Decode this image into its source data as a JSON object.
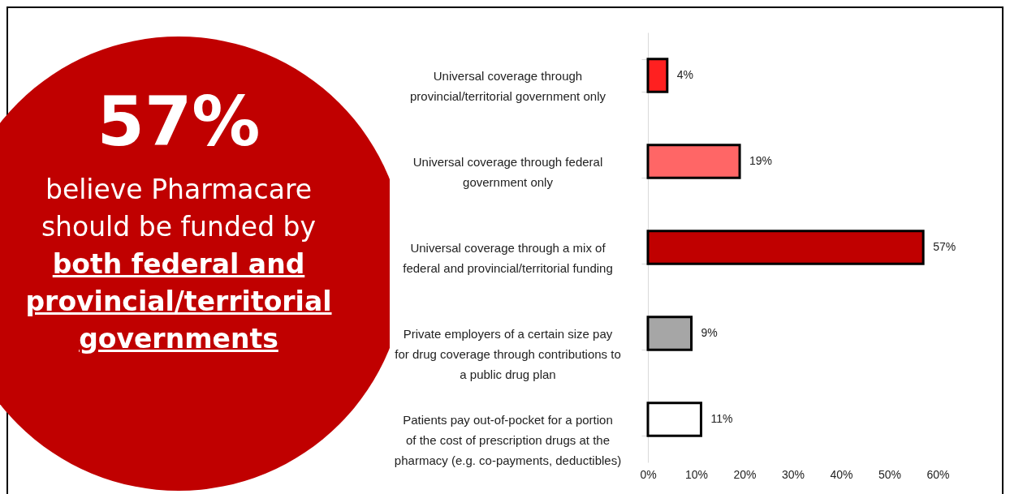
{
  "chart_data": {
    "type": "bar",
    "orientation": "horizontal",
    "categories": [
      "Universal coverage through provincial/territorial government only",
      "Universal coverage through federal government only",
      "Universal coverage through a mix of federal and provincial/territorial funding",
      "Private employers of a certain size pay for drug coverage through contributions to a public drug plan",
      "Patients pay out-of-pocket for a portion of the cost of prescription drugs at the pharmacy (e.g. co-payments, deductibles)"
    ],
    "values": [
      4,
      19,
      57,
      9,
      11
    ],
    "colors": [
      "#ff2020",
      "#ff6666",
      "#c00000",
      "#a6a6a6",
      "#ffffff"
    ],
    "value_labels": [
      "4%",
      "19%",
      "57%",
      "9%",
      "11%"
    ],
    "xlim": [
      0,
      60
    ],
    "xticks": [
      {
        "value": 0,
        "label": "0%"
      },
      {
        "value": 10,
        "label": "10%"
      },
      {
        "value": 20,
        "label": "20%"
      },
      {
        "value": 30,
        "label": "30%"
      },
      {
        "value": 40,
        "label": "40%"
      },
      {
        "value": 50,
        "label": "50%"
      },
      {
        "value": 60,
        "label": "60%"
      }
    ],
    "grid": false,
    "annotations": [
      "57%",
      "believe Pharmacare should be funded by",
      "both federal and provincial/territorial governments"
    ]
  }
}
